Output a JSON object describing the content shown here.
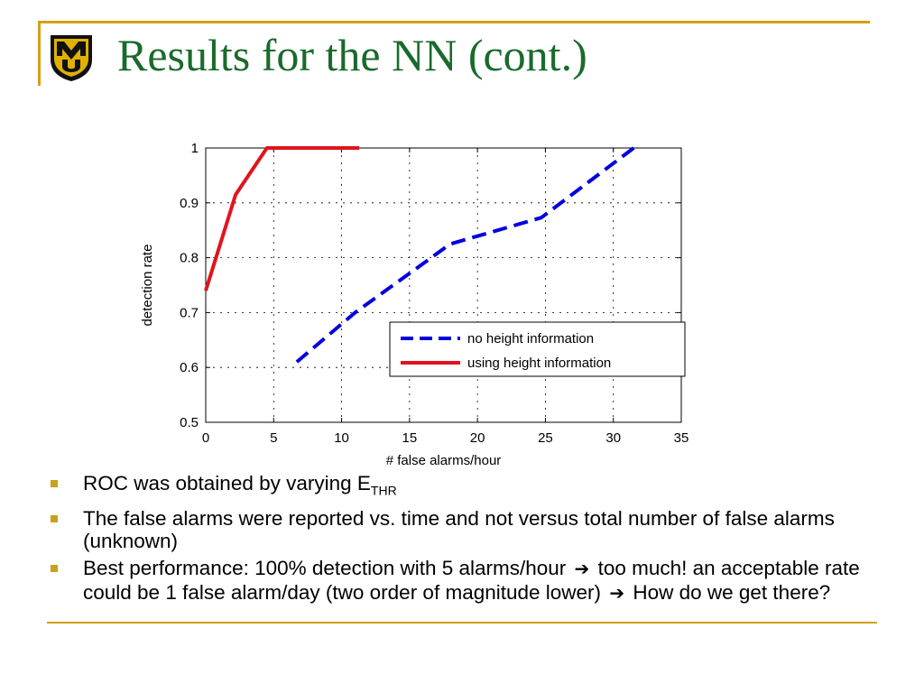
{
  "slide": {
    "title": "Results for the NN (cont.)",
    "logo_text": "MU",
    "colors": {
      "accent": "#d4a017",
      "title": "#1a6a2c",
      "bullet": "#c8a21a"
    }
  },
  "chart_data": {
    "type": "line",
    "xlabel": "# false alarms/hour",
    "ylabel": "detection rate",
    "xlim": [
      0,
      35
    ],
    "ylim": [
      0.5,
      1
    ],
    "xticks": [
      0,
      5,
      10,
      15,
      20,
      25,
      30,
      35
    ],
    "yticks": [
      0.5,
      0.6,
      0.7,
      0.8,
      0.9,
      1
    ],
    "xtick_labels": [
      "0",
      "5",
      "10",
      "15",
      "20",
      "25",
      "30",
      "35"
    ],
    "ytick_labels": [
      "0.5",
      "0.6",
      "0.7",
      "0.8",
      "0.9",
      "1"
    ],
    "grid": true,
    "legend_position": "lower-right",
    "series": [
      {
        "name": "no height information",
        "color": "#0000dd",
        "style": "dashed",
        "x": [
          6.7,
          11,
          18,
          24.7,
          31.5
        ],
        "y": [
          0.61,
          0.7,
          0.825,
          0.873,
          1.0
        ]
      },
      {
        "name": "using height information",
        "color": "#e0141e",
        "style": "solid",
        "x": [
          0,
          2.2,
          4.5,
          11.3
        ],
        "y": [
          0.74,
          0.915,
          1.0,
          1.0
        ]
      }
    ]
  },
  "bullets": {
    "b1": {
      "text": "ROC was obtained by varying E",
      "sub": "THR"
    },
    "b2": {
      "text": "The false alarms were reported vs. time and not versus total number of false alarms (unknown)"
    },
    "b3": {
      "part1": "Best performance: 100% detection with 5 alarms/hour",
      "arrow1": "➔",
      "part2": "too much! an acceptable rate could be 1 false alarm/day (two order of magnitude lower)",
      "arrow2": "➔",
      "part3": "How do we get there?"
    }
  }
}
